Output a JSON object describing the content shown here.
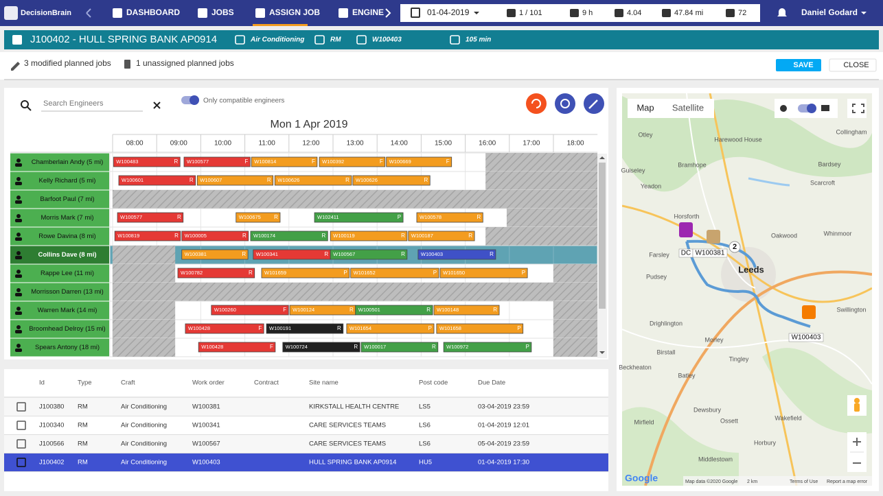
{
  "nav": {
    "brand": "DecisionBrain",
    "items": [
      "DASHBOARD",
      "JOBS",
      "ASSIGN JOB",
      "ENGINE"
    ],
    "date": "01-04-2019",
    "stats": [
      "1 / 101",
      "9 h",
      "4.04",
      "47.84 mi",
      "72"
    ],
    "user": "Daniel Godard"
  },
  "job": {
    "title": "J100402 - HULL SPRING BANK AP0914",
    "craft": "Air Conditioning",
    "type": "RM",
    "work_order": "W100403",
    "duration": "105 min"
  },
  "status": {
    "modified": "3 modified planned jobs",
    "unassigned": "1 unassigned planned jobs",
    "save": "SAVE",
    "close": "CLOSE"
  },
  "gantt": {
    "search": "Search Engineers",
    "toggle": "Only compatible engineers",
    "date": "Mon 1 Apr 2019",
    "hours": [
      "08:00",
      "09:00",
      "10:00",
      "11:00",
      "12:00",
      "13:00",
      "14:00",
      "15:00",
      "16:00",
      "17:00",
      "18:00"
    ],
    "engineers": [
      {
        "name": "Chamberlain Andy (5 mi)",
        "unavailable": [
          [
            16.46,
            19
          ]
        ],
        "tasks": [
          {
            "label": "W100483",
            "flag": "R",
            "color": "#e53935",
            "start": 8.02,
            "end": 9.53
          },
          {
            "label": "W100577",
            "flag": "F",
            "color": "#e53935",
            "start": 9.62,
            "end": 11.12
          },
          {
            "label": "W100814",
            "flag": "F",
            "color": "#f39c1f",
            "start": 11.15,
            "end": 12.64
          },
          {
            "label": "W100392",
            "flag": "F",
            "color": "#f39c1f",
            "start": 12.69,
            "end": 14.18
          },
          {
            "label": "W100669",
            "flag": "F",
            "color": "#f39c1f",
            "start": 14.21,
            "end": 15.69
          }
        ]
      },
      {
        "name": "Kelly Richard (5 mi)",
        "unavailable": [
          [
            16.46,
            19
          ]
        ],
        "tasks": [
          {
            "label": "W100601",
            "flag": "R",
            "color": "#e53935",
            "start": 8.14,
            "end": 9.88
          },
          {
            "label": "W100607",
            "flag": "R",
            "color": "#f39c1f",
            "start": 9.92,
            "end": 11.64
          },
          {
            "label": "W100626",
            "flag": "R",
            "color": "#f39c1f",
            "start": 11.68,
            "end": 13.42
          },
          {
            "label": "W100626",
            "flag": "R",
            "color": "#f39c1f",
            "start": 13.45,
            "end": 15.2
          }
        ]
      },
      {
        "name": "Barfoot Paul (7 mi)",
        "unavailable": [
          [
            8,
            19
          ]
        ],
        "tasks": []
      },
      {
        "name": "Morris Mark (7 mi)",
        "unavailable": [
          [
            16.94,
            19
          ]
        ],
        "tasks": [
          {
            "label": "W100577",
            "flag": "R",
            "color": "#e53935",
            "start": 8.11,
            "end": 9.6
          },
          {
            "label": "W100675",
            "flag": "R",
            "color": "#f39c1f",
            "start": 10.8,
            "end": 11.8
          },
          {
            "label": "W102411",
            "flag": "P",
            "color": "#43a047",
            "start": 12.58,
            "end": 14.59
          },
          {
            "label": "W100578",
            "flag": "R",
            "color": "#f39c1f",
            "start": 14.9,
            "end": 16.4
          }
        ]
      },
      {
        "name": "Rowe Davina (8 mi)",
        "unavailable": [
          [
            16.46,
            19
          ]
        ],
        "tasks": [
          {
            "label": "W100819",
            "flag": "R",
            "color": "#e53935",
            "start": 8.05,
            "end": 9.54
          },
          {
            "label": "W100005",
            "flag": "R",
            "color": "#e53935",
            "start": 9.57,
            "end": 11.08
          },
          {
            "label": "W100174",
            "flag": "R",
            "color": "#43a047",
            "start": 11.13,
            "end": 12.88
          },
          {
            "label": "W100119",
            "flag": "R",
            "color": "#f39c1f",
            "start": 12.94,
            "end": 14.68
          },
          {
            "label": "W100187",
            "flag": "R",
            "color": "#f39c1f",
            "start": 14.71,
            "end": 16.21
          }
        ]
      },
      {
        "name": "Collins Dave (8 mi)",
        "selected": true,
        "unavailable": [
          [
            8,
            9.42
          ]
        ],
        "tasks": [
          {
            "label": "W100381",
            "flag": "R",
            "color": "#f39c1f",
            "start": 9.57,
            "end": 11.07
          },
          {
            "label": "W100341",
            "flag": "R",
            "color": "#e53935",
            "start": 11.19,
            "end": 12.94
          },
          {
            "label": "W100567",
            "flag": "R",
            "color": "#43a047",
            "start": 12.94,
            "end": 14.68
          },
          {
            "label": "W100403",
            "flag": "R",
            "color": "#3f51c7",
            "start": 14.93,
            "end": 16.69
          }
        ]
      },
      {
        "name": "Rappe Lee (11 mi)",
        "unavailable": [
          [
            8,
            9.42
          ],
          [
            18,
            19
          ]
        ],
        "tasks": [
          {
            "label": "W100782",
            "flag": "R",
            "color": "#e53935",
            "start": 9.48,
            "end": 11.22
          },
          {
            "label": "W101659",
            "flag": "P",
            "color": "#f39c1f",
            "start": 11.38,
            "end": 13.37
          },
          {
            "label": "W101652",
            "flag": "P",
            "color": "#f39c1f",
            "start": 13.4,
            "end": 15.4
          },
          {
            "label": "W101650",
            "flag": "P",
            "color": "#f39c1f",
            "start": 15.43,
            "end": 17.41
          }
        ]
      },
      {
        "name": "Morrisson Darren (13 mi)",
        "unavailable": [
          [
            8,
            19
          ]
        ],
        "tasks": []
      },
      {
        "name": "Warren Mark (14 mi)",
        "unavailable": [
          [
            8,
            9.42
          ],
          [
            18,
            19
          ]
        ],
        "tasks": [
          {
            "label": "W100260",
            "flag": "F",
            "color": "#e53935",
            "start": 10.24,
            "end": 11.99
          },
          {
            "label": "W100124",
            "flag": "R",
            "color": "#f39c1f",
            "start": 12.02,
            "end": 13.51
          },
          {
            "label": "W100501",
            "flag": "R",
            "color": "#43a047",
            "start": 13.51,
            "end": 15.26
          },
          {
            "label": "W100148",
            "flag": "R",
            "color": "#f39c1f",
            "start": 15.29,
            "end": 16.77
          }
        ]
      },
      {
        "name": "Broomhead Delroy (15 mi)",
        "unavailable": [
          [
            8,
            9.42
          ],
          [
            18,
            19
          ]
        ],
        "tasks": [
          {
            "label": "W100428",
            "flag": "F",
            "color": "#e53935",
            "start": 9.65,
            "end": 11.43
          },
          {
            "label": "W100191",
            "flag": "R",
            "color": "#212121",
            "start": 11.49,
            "end": 13.23
          },
          {
            "label": "W101654",
            "flag": "P",
            "color": "#f39c1f",
            "start": 13.31,
            "end": 15.29
          },
          {
            "label": "W101658",
            "flag": "P",
            "color": "#f39c1f",
            "start": 15.35,
            "end": 17.31
          }
        ]
      },
      {
        "name": "Spears Antony (18 mi)",
        "unavailable": [
          [
            8,
            9.42
          ],
          [
            18,
            19
          ]
        ],
        "tasks": [
          {
            "label": "W100428",
            "flag": "F",
            "color": "#e53935",
            "start": 9.95,
            "end": 11.69
          },
          {
            "label": "W100724",
            "flag": "R",
            "color": "#212121",
            "start": 11.86,
            "end": 13.61
          },
          {
            "label": "W100017",
            "flag": "R",
            "color": "#43a047",
            "start": 13.64,
            "end": 15.38
          },
          {
            "label": "W100972",
            "flag": "P",
            "color": "#43a047",
            "start": 15.51,
            "end": 17.5
          }
        ]
      }
    ]
  },
  "table": {
    "columns": [
      "Id",
      "Type",
      "Craft",
      "Work order",
      "Contract",
      "Site name",
      "Post code",
      "Due Date"
    ],
    "rows": [
      {
        "id": "J100380",
        "type": "RM",
        "craft": "Air Conditioning",
        "work_order": "W100381",
        "site": "KIRKSTALL HEALTH CENTRE",
        "post_code": "LS5",
        "due": "03-04-2019 23:59"
      },
      {
        "id": "J100340",
        "type": "RM",
        "craft": "Air Conditioning",
        "work_order": "W100341",
        "site": "CARE SERVICES TEAMS",
        "post_code": "LS6",
        "due": "01-04-2019 12:01"
      },
      {
        "id": "J100566",
        "type": "RM",
        "craft": "Air Conditioning",
        "work_order": "W100567",
        "site": "CARE SERVICES TEAMS",
        "post_code": "LS6",
        "due": "05-04-2019 23:59"
      },
      {
        "id": "J100402",
        "type": "RM",
        "craft": "Air Conditioning",
        "work_order": "W100403",
        "site": "HULL SPRING BANK AP0914",
        "post_code": "HU5",
        "due": "01-04-2019 17:30",
        "selected": true
      }
    ]
  },
  "map": {
    "tabs": [
      "Map",
      "Satellite"
    ],
    "places": [
      "Otley",
      "Harewood House",
      "Guiseley",
      "Bramhope",
      "Bardsey",
      "Yeadon",
      "Scarcroft",
      "Horsforth",
      "Oakwood",
      "Whinmoor",
      "Farsley",
      "Leeds",
      "Pudsey",
      "Swillington",
      "Drighlington",
      "Morley",
      "Birstall",
      "Tingley",
      "Batley",
      "Dewsbury",
      "Ossett",
      "Wakefield",
      "Mirfield",
      "Horbury",
      "Middlestown",
      "Collingham",
      "Beckheaton"
    ],
    "markers": [
      "DC",
      "W100381",
      "2",
      "W100403"
    ],
    "attribution": "Map data ©2020 Google",
    "scale": "2 km",
    "terms": "Terms of Use",
    "report": "Report a map error",
    "logo": "Google"
  }
}
